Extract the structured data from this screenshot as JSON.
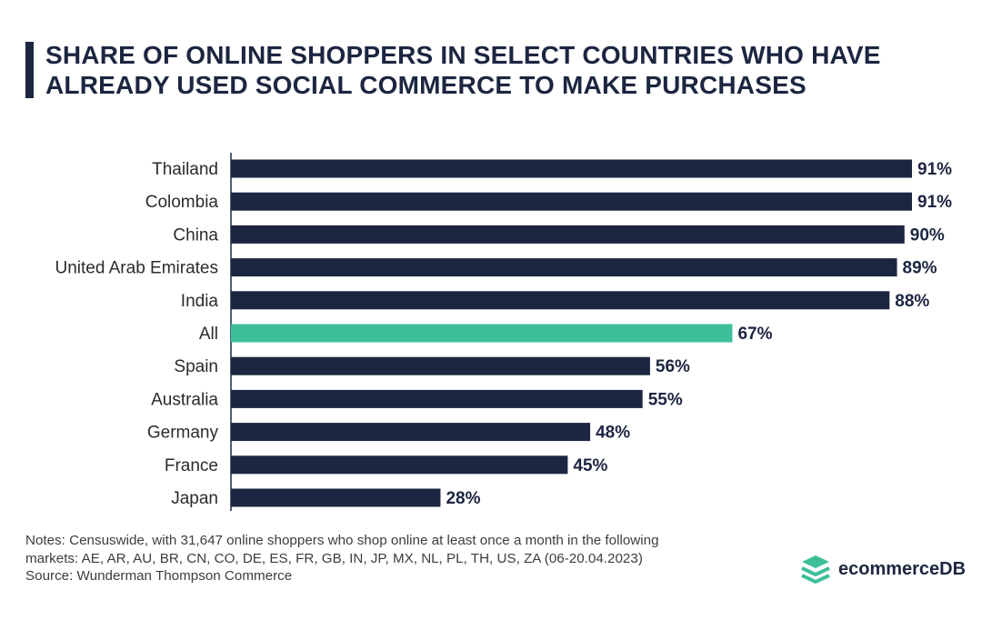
{
  "title_line1": "SHARE OF ONLINE SHOPPERS IN SELECT COUNTRIES WHO HAVE",
  "title_line2": "ALREADY USED SOCIAL COMMERCE TO MAKE PURCHASES",
  "colors": {
    "bar": "#1c2641",
    "highlight": "#3dbf99",
    "text": "#1c2641"
  },
  "chart_data": {
    "type": "bar",
    "orientation": "horizontal",
    "categories": [
      "Thailand",
      "Colombia",
      "China",
      "United Arab Emirates",
      "India",
      "All",
      "Spain",
      "Australia",
      "Germany",
      "France",
      "Japan"
    ],
    "values": [
      91,
      91,
      90,
      89,
      88,
      67,
      56,
      55,
      48,
      45,
      28
    ],
    "labels": [
      "91%",
      "91%",
      "90%",
      "89%",
      "88%",
      "67%",
      "56%",
      "55%",
      "48%",
      "45%",
      "28%"
    ],
    "highlight_category": "All",
    "unit": "%",
    "xlim": [
      0,
      100
    ],
    "title": "SHARE OF ONLINE SHOPPERS IN SELECT COUNTRIES WHO HAVE ALREADY USED SOCIAL COMMERCE TO MAKE PURCHASES",
    "grid": false,
    "legend": "none"
  },
  "notes": {
    "line1": "Notes: Censuswide, with 31,647 online shoppers who shop online at least once a month in the following",
    "line2": "markets: AE, AR, AU, BR, CN, CO, DE, ES, FR, GB, IN, JP, MX, NL, PL, TH, US, ZA (06-20.04.2023)",
    "source": "Source: Wunderman Thompson Commerce"
  },
  "logo": {
    "text": "ecommerceDB",
    "icon": "stacked-layers-icon"
  }
}
